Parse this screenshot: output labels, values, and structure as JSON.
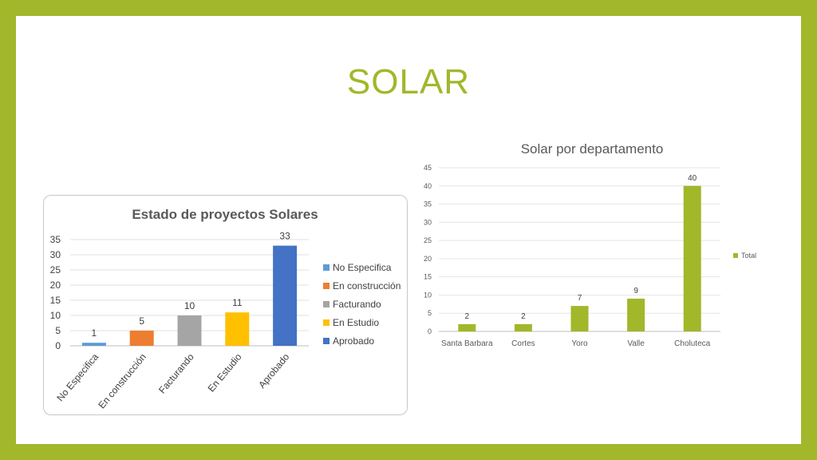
{
  "slide": {
    "title": "SOLAR",
    "colors": {
      "border": "#a2b72a",
      "title": "#a2b72a",
      "background": "#ffffff"
    }
  },
  "chart_data": [
    {
      "type": "bar",
      "title": "Estado de proyectos Solares",
      "categories": [
        "No Especifica",
        "En construcción",
        "Facturando",
        "En Estudio",
        "Aprobado"
      ],
      "values": [
        1,
        5,
        10,
        11,
        33
      ],
      "colors": [
        "#5b9bd5",
        "#ed7d31",
        "#a5a5a5",
        "#ffc000",
        "#4472c4"
      ],
      "yticks": [
        "0",
        "5",
        "10",
        "15",
        "20",
        "25",
        "30",
        "35"
      ],
      "ylim": [
        0,
        35
      ],
      "grid": true,
      "legend": {
        "position": "right",
        "entries": [
          "No Especifica",
          "En construcción",
          "Facturando",
          "En Estudio",
          "Aprobado"
        ]
      },
      "xlabel": "",
      "ylabel": ""
    },
    {
      "type": "bar",
      "title": "Solar por departamento",
      "categories": [
        "Santa Barbara",
        "Cortes",
        "Yoro",
        "Valle",
        "Choluteca"
      ],
      "series": [
        {
          "name": "Total",
          "values": [
            2,
            2,
            7,
            9,
            40
          ]
        }
      ],
      "color": "#a2b72a",
      "yticks": [
        "0",
        "5",
        "10",
        "15",
        "20",
        "25",
        "30",
        "35",
        "40",
        "45"
      ],
      "ylim": [
        0,
        45
      ],
      "grid": true,
      "legend": {
        "position": "right",
        "entries": [
          "Total"
        ]
      },
      "xlabel": "",
      "ylabel": ""
    }
  ]
}
